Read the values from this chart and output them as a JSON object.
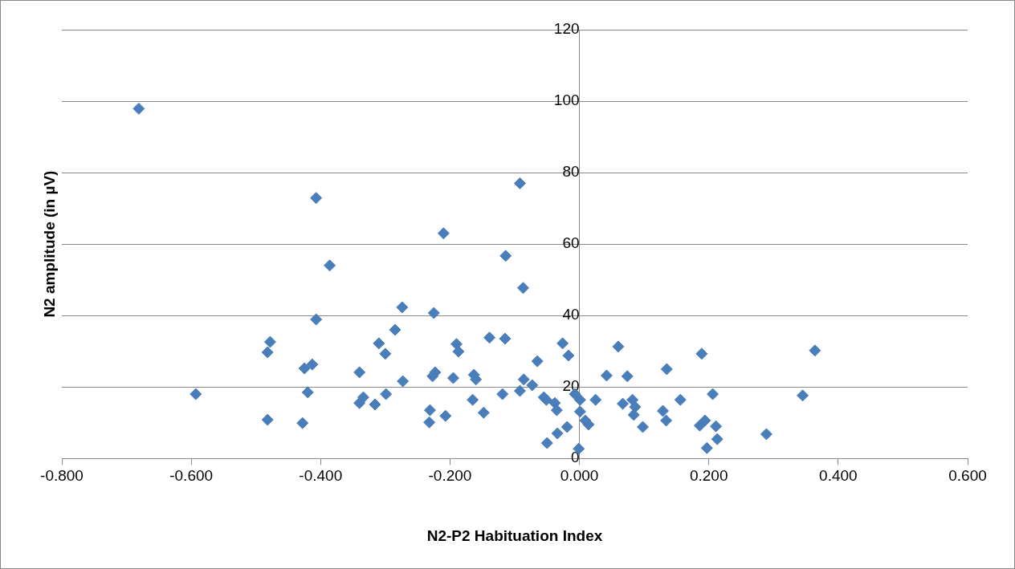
{
  "chart_data": {
    "type": "scatter",
    "xlabel": "N2-P2 Habituation Index",
    "ylabel": "N2 amplitude (in µV)",
    "xlim": [
      -0.8,
      0.6
    ],
    "xticks": [
      {
        "value": -0.8,
        "label": "-0.800"
      },
      {
        "value": -0.6,
        "label": "-0.600"
      },
      {
        "value": -0.4,
        "label": "-0.400"
      },
      {
        "value": -0.2,
        "label": "-0.200"
      },
      {
        "value": 0,
        "label": "0.000"
      },
      {
        "value": 0.2,
        "label": "0.200"
      },
      {
        "value": 0.4,
        "label": "0.400"
      },
      {
        "value": 0.6,
        "label": "0.600"
      }
    ],
    "ylim": [
      0,
      120
    ],
    "yticks": [
      0,
      20,
      40,
      60,
      80,
      100,
      120
    ],
    "grid": "y",
    "marker": "diamond",
    "legend": false,
    "series": [
      {
        "color": "#4a7ebb",
        "x": [
          -0.681,
          -0.593,
          -0.482,
          -0.478,
          -0.482,
          -0.428,
          -0.425,
          -0.42,
          -0.413,
          -0.407,
          -0.407,
          -0.386,
          -0.34,
          -0.34,
          -0.334,
          -0.316,
          -0.31,
          -0.3,
          -0.299,
          -0.285,
          -0.274,
          -0.273,
          -0.232,
          -0.231,
          -0.227,
          -0.223,
          -0.225,
          -0.21,
          -0.207,
          -0.195,
          -0.19,
          -0.187,
          -0.165,
          -0.163,
          -0.16,
          -0.148,
          -0.139,
          -0.119,
          -0.114,
          -0.115,
          -0.092,
          -0.092,
          -0.087,
          -0.086,
          -0.073,
          -0.065,
          -0.055,
          -0.051,
          -0.05,
          -0.038,
          -0.035,
          -0.034,
          -0.026,
          -0.017,
          -0.019,
          -0.007,
          -0.001,
          0.001,
          0.001,
          0.009,
          0.014,
          0.025,
          0.042,
          0.06,
          0.067,
          0.074,
          0.082,
          0.086,
          0.084,
          0.098,
          0.129,
          0.134,
          0.135,
          0.156,
          0.186,
          0.189,
          0.194,
          0.197,
          0.206,
          0.211,
          0.213,
          0.289,
          0.345,
          0.364
        ],
        "values": [
          97.9,
          18,
          29.7,
          32.6,
          10.8,
          9.9,
          25.2,
          18.5,
          26.3,
          72.9,
          38.9,
          54,
          24.1,
          15.5,
          17.1,
          15.1,
          32.2,
          29.3,
          18,
          36,
          42.3,
          21.6,
          10.1,
          13.5,
          23,
          24.1,
          40.7,
          63,
          11.9,
          22.5,
          32,
          29.9,
          16.4,
          23.4,
          22.1,
          12.8,
          33.8,
          18,
          56.7,
          33.5,
          77,
          18.9,
          47.7,
          22.1,
          20.5,
          27.2,
          17.1,
          16.4,
          4.3,
          15.5,
          13.5,
          7,
          32.2,
          28.8,
          8.8,
          18,
          2.7,
          16.4,
          13.1,
          10.6,
          9.5,
          16.4,
          23.2,
          31.3,
          15.3,
          23,
          16.4,
          14.4,
          12.2,
          8.8,
          13.3,
          10.6,
          25,
          16.4,
          9.2,
          29.3,
          10.6,
          2.9,
          18,
          9,
          5.4,
          6.8,
          17.6,
          30.2
        ]
      }
    ]
  }
}
